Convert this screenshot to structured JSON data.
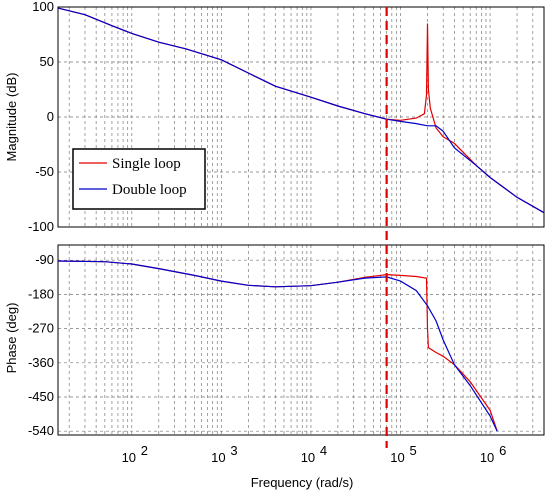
{
  "chart_data": [
    {
      "type": "line",
      "panel": "magnitude",
      "xscale": "log",
      "xlim": [
        15,
        4000000
      ],
      "ylim": [
        -100,
        100
      ],
      "yticks": [
        100,
        50,
        0,
        -50,
        -100
      ],
      "ylabel": "Magnitude (dB)",
      "grid": true,
      "legend": {
        "placement": "lower-left",
        "entries": [
          "Single loop",
          "Double loop"
        ]
      },
      "vline_x": 70000,
      "series": [
        {
          "name": "Single loop",
          "color": "#e00000",
          "x": [
            15,
            30,
            60,
            100,
            200,
            400,
            1000,
            2000,
            4000,
            10000,
            20000,
            40000,
            70000,
            100000,
            150000,
            185000,
            195000,
            200000,
            205000,
            215000,
            250000,
            300000,
            400000,
            700000,
            1000000,
            2000000,
            4000000
          ],
          "y": [
            99,
            93,
            83,
            76,
            68,
            62,
            52,
            40,
            28,
            18,
            10,
            3,
            -2,
            -3,
            -1,
            3,
            20,
            85,
            25,
            8,
            -10,
            -18,
            -24,
            -44,
            -55,
            -73,
            -87
          ]
        },
        {
          "name": "Double loop",
          "color": "#0000cc",
          "x": [
            15,
            30,
            60,
            100,
            200,
            400,
            1000,
            2000,
            4000,
            10000,
            20000,
            40000,
            70000,
            100000,
            150000,
            200000,
            250000,
            300000,
            400000,
            700000,
            1000000,
            2000000,
            4000000
          ],
          "y": [
            99,
            93,
            83,
            76,
            68,
            62,
            52,
            40,
            28,
            18,
            10,
            3,
            -2,
            -4,
            -6,
            -8,
            -8,
            -13,
            -28,
            -44,
            -55,
            -73,
            -87
          ]
        }
      ]
    },
    {
      "type": "line",
      "panel": "phase",
      "xscale": "log",
      "xlim": [
        15,
        4000000
      ],
      "ylim": [
        -550,
        -50
      ],
      "yticks": [
        -90,
        -180,
        -270,
        -360,
        -450,
        -540
      ],
      "xticks": [
        100,
        1000,
        10000,
        100000,
        1000000
      ],
      "xticklabels": [
        "10",
        "10",
        "10",
        "10",
        "10"
      ],
      "xtickexponents": [
        "2",
        "3",
        "4",
        "5",
        "6"
      ],
      "xlabel": "Frequency  (rad/s)",
      "ylabel": "Phase (deg)",
      "grid": true,
      "vline_x": 70000,
      "series": [
        {
          "name": "Single loop",
          "color": "#e00000",
          "x": [
            15,
            50,
            100,
            200,
            500,
            1000,
            2000,
            4000,
            10000,
            20000,
            40000,
            70000,
            100000,
            150000,
            195000,
            200000,
            205000,
            250000,
            300000,
            400000,
            600000,
            1000000,
            1200000
          ],
          "y": [
            -92,
            -94,
            -100,
            -112,
            -130,
            -145,
            -156,
            -160,
            -157,
            -148,
            -135,
            -128,
            -130,
            -133,
            -137,
            -270,
            -320,
            -333,
            -343,
            -365,
            -410,
            -485,
            -540
          ]
        },
        {
          "name": "Double loop",
          "color": "#0000cc",
          "x": [
            15,
            50,
            100,
            200,
            500,
            1000,
            2000,
            4000,
            10000,
            20000,
            40000,
            70000,
            100000,
            150000,
            200000,
            250000,
            300000,
            400000,
            600000,
            1000000,
            1200000
          ],
          "y": [
            -92,
            -94,
            -100,
            -112,
            -130,
            -145,
            -156,
            -160,
            -157,
            -148,
            -137,
            -134,
            -145,
            -170,
            -210,
            -250,
            -300,
            -365,
            -420,
            -500,
            -540
          ]
        }
      ]
    }
  ]
}
